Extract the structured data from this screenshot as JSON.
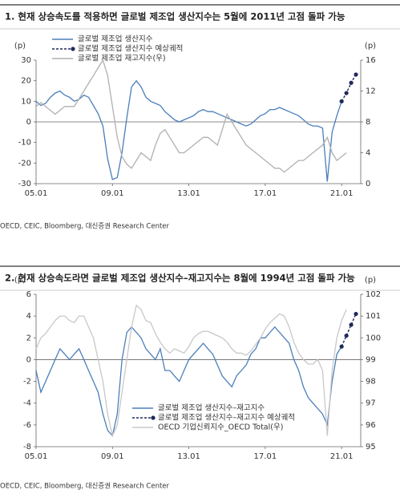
{
  "chart_data": [
    {
      "type": "line",
      "title": "1. 현재 상승속도를 적용하면 글로벌 제조업 생산지수는 5월에 2011년 고점 돌파 가능",
      "y_label": "(p)",
      "y2_label": "(p)",
      "source": "OECD, CEIC, Bloomberg, 대신증권 Research Center",
      "legend": "upper left",
      "xlim": [
        2005,
        2022
      ],
      "xticks": [
        {
          "value": 2005,
          "label": "05.01"
        },
        {
          "value": 2009,
          "label": "09.01"
        },
        {
          "value": 2013,
          "label": "13.01"
        },
        {
          "value": 2017,
          "label": "17.01"
        },
        {
          "value": 2021,
          "label": "21.01"
        }
      ],
      "ylim": [
        -30,
        30
      ],
      "yticks": [
        -30,
        -20,
        -10,
        0,
        10,
        20,
        30
      ],
      "y2lim": [
        0,
        16
      ],
      "y2ticks": [
        0,
        4,
        8,
        12,
        16
      ],
      "x": [
        2005,
        2005.25,
        2005.5,
        2005.75,
        2006,
        2006.25,
        2006.5,
        2006.75,
        2007,
        2007.25,
        2007.5,
        2007.75,
        2008,
        2008.25,
        2008.5,
        2008.75,
        2009,
        2009.25,
        2009.5,
        2009.75,
        2010,
        2010.25,
        2010.5,
        2010.75,
        2011,
        2011.25,
        2011.5,
        2011.75,
        2012,
        2012.25,
        2012.5,
        2012.75,
        2013,
        2013.25,
        2013.5,
        2013.75,
        2014,
        2014.25,
        2014.5,
        2014.75,
        2015,
        2015.25,
        2015.5,
        2015.75,
        2016,
        2016.25,
        2016.5,
        2016.75,
        2017,
        2017.25,
        2017.5,
        2017.75,
        2018,
        2018.25,
        2018.5,
        2018.75,
        2019,
        2019.25,
        2019.5,
        2019.75,
        2020,
        2020.25,
        2020.5,
        2020.75,
        2021,
        2021.25,
        2021.5,
        2021.75
      ],
      "series": [
        {
          "name": "글로벌 제조업 생산지수",
          "color": "#4a7ebb",
          "values": [
            10,
            8,
            9,
            12,
            14,
            15,
            13,
            12,
            10,
            11,
            13,
            12,
            8,
            4,
            -2,
            -18,
            -28,
            -27,
            -15,
            2,
            17,
            20,
            17,
            12,
            10,
            9,
            8,
            5,
            3,
            1,
            0,
            1,
            2,
            3,
            5,
            6,
            5,
            5,
            4,
            3,
            2,
            1,
            0,
            -1,
            -2,
            -1,
            1,
            3,
            4,
            6,
            6,
            7,
            6,
            5,
            4,
            3,
            1,
            -1,
            -2,
            -2,
            -3,
            -29,
            -5,
            3,
            10,
            null,
            null,
            null
          ]
        },
        {
          "name": "글로벌 제조업 생산지수 예상궤적",
          "color": "#1f2a5a",
          "dashed": true,
          "markers": true,
          "values": [
            null,
            null,
            null,
            null,
            null,
            null,
            null,
            null,
            null,
            null,
            null,
            null,
            null,
            null,
            null,
            null,
            null,
            null,
            null,
            null,
            null,
            null,
            null,
            null,
            null,
            null,
            null,
            null,
            null,
            null,
            null,
            null,
            null,
            null,
            null,
            null,
            null,
            null,
            null,
            null,
            null,
            null,
            null,
            null,
            null,
            null,
            null,
            null,
            null,
            null,
            null,
            null,
            null,
            null,
            null,
            null,
            null,
            null,
            null,
            null,
            null,
            null,
            null,
            null,
            10,
            14,
            19,
            23
          ]
        },
        {
          "name": "글로벌 제조업 재고지수(우)",
          "color": "#b0b0b0",
          "axis": "y2",
          "values": [
            10,
            10.5,
            10,
            9.5,
            9,
            9.5,
            10,
            10,
            10,
            11,
            12,
            13,
            14,
            15,
            16,
            14,
            10,
            6,
            3.5,
            2.5,
            2,
            3,
            4,
            3.5,
            3,
            5,
            6.5,
            7,
            6,
            5,
            4,
            4,
            4.5,
            5,
            5.5,
            6,
            6,
            5.5,
            5,
            7,
            9,
            8,
            7,
            6,
            5,
            4.5,
            4,
            3.5,
            3,
            2.5,
            2,
            2,
            1.5,
            2,
            2.5,
            3,
            3,
            3.5,
            4,
            4.5,
            5,
            6,
            4,
            3,
            3.5,
            4,
            null,
            null
          ]
        }
      ]
    },
    {
      "type": "line",
      "title": "2. 현재 상승속도라면 글로벌 제조업 생산지수–재고지수는 8월에 1994년 고점 돌파 가능",
      "y_label": "(p)",
      "y2_label": "(p)",
      "source": "OECD, CEIC, Bloomberg, 대신증권 Research Center",
      "legend": "lower center",
      "xlim": [
        2005,
        2022
      ],
      "xticks": [
        {
          "value": 2005,
          "label": "05.01"
        },
        {
          "value": 2009,
          "label": "09.01"
        },
        {
          "value": 2013,
          "label": "13.01"
        },
        {
          "value": 2017,
          "label": "17.01"
        },
        {
          "value": 2021,
          "label": "21.01"
        }
      ],
      "ylim": [
        -8,
        6
      ],
      "yticks": [
        -8,
        -6,
        -4,
        -2,
        0,
        2,
        4,
        6
      ],
      "y2lim": [
        95,
        102
      ],
      "y2ticks": [
        95,
        96,
        97,
        98,
        99,
        100,
        101,
        102
      ],
      "x": [
        2005,
        2005.25,
        2005.5,
        2005.75,
        2006,
        2006.25,
        2006.5,
        2006.75,
        2007,
        2007.25,
        2007.5,
        2007.75,
        2008,
        2008.25,
        2008.5,
        2008.75,
        2009,
        2009.25,
        2009.5,
        2009.75,
        2010,
        2010.25,
        2010.5,
        2010.75,
        2011,
        2011.25,
        2011.5,
        2011.75,
        2012,
        2012.25,
        2012.5,
        2012.75,
        2013,
        2013.25,
        2013.5,
        2013.75,
        2014,
        2014.25,
        2014.5,
        2014.75,
        2015,
        2015.25,
        2015.5,
        2015.75,
        2016,
        2016.25,
        2016.5,
        2016.75,
        2017,
        2017.25,
        2017.5,
        2017.75,
        2018,
        2018.25,
        2018.5,
        2018.75,
        2019,
        2019.25,
        2019.5,
        2019.75,
        2020,
        2020.25,
        2020.5,
        2020.75,
        2021,
        2021.25,
        2021.5,
        2021.75
      ],
      "series": [
        {
          "name": "글로벌 제조업 생산지수–재고지수",
          "color": "#4a7ebb",
          "values": [
            -1,
            -3,
            -2,
            -1,
            0,
            1,
            0.5,
            0,
            0.5,
            1,
            0,
            -1,
            -2,
            -3,
            -5,
            -6.5,
            -7,
            -5,
            0,
            2.5,
            3,
            2.5,
            2,
            1,
            0.5,
            0,
            1,
            -1,
            -1,
            -1.5,
            -2,
            -1,
            0,
            0.5,
            1,
            1.5,
            1,
            0.5,
            -0.5,
            -1.5,
            -2,
            -2.5,
            -1.5,
            -1,
            -0.5,
            0.5,
            1,
            2,
            2,
            2.5,
            3,
            2.5,
            2,
            1.5,
            0,
            -1,
            -2.5,
            -3.5,
            -4,
            -4.5,
            -5,
            -6,
            -2,
            0.5,
            1.2,
            null,
            null,
            null
          ]
        },
        {
          "name": "글로벌 제조업 생산지수–재고지수 예상궤적",
          "color": "#1f2a5a",
          "dashed": true,
          "markers": true,
          "values": [
            null,
            null,
            null,
            null,
            null,
            null,
            null,
            null,
            null,
            null,
            null,
            null,
            null,
            null,
            null,
            null,
            null,
            null,
            null,
            null,
            null,
            null,
            null,
            null,
            null,
            null,
            null,
            null,
            null,
            null,
            null,
            null,
            null,
            null,
            null,
            null,
            null,
            null,
            null,
            null,
            null,
            null,
            null,
            null,
            null,
            null,
            null,
            null,
            null,
            null,
            null,
            null,
            null,
            null,
            null,
            null,
            null,
            null,
            null,
            null,
            null,
            null,
            null,
            null,
            1.2,
            2.2,
            3.2,
            4.2
          ]
        },
        {
          "name": "OECD 기업신뢰지수_OECD Total(우)",
          "color": "#c8c8c8",
          "axis": "y2",
          "values": [
            99.5,
            100,
            100.2,
            100.5,
            100.8,
            101,
            101,
            100.8,
            100.7,
            101,
            101,
            100.5,
            100,
            99,
            98,
            96.5,
            95.5,
            96,
            97.5,
            99,
            100.5,
            101.5,
            101.3,
            100.8,
            100.7,
            100.2,
            99.8,
            99.5,
            99.3,
            99.5,
            99.4,
            99.3,
            99.6,
            100,
            100.2,
            100.3,
            100.3,
            100.2,
            100.1,
            100,
            99.8,
            99.5,
            99.3,
            99.3,
            99.2,
            99.4,
            99.7,
            100,
            100.4,
            100.7,
            100.9,
            101.1,
            101,
            100.5,
            99.8,
            99.3,
            99,
            98.8,
            98.8,
            99,
            98.5,
            95.5,
            98.5,
            100,
            100.8,
            101.3,
            null,
            null
          ]
        }
      ]
    }
  ]
}
